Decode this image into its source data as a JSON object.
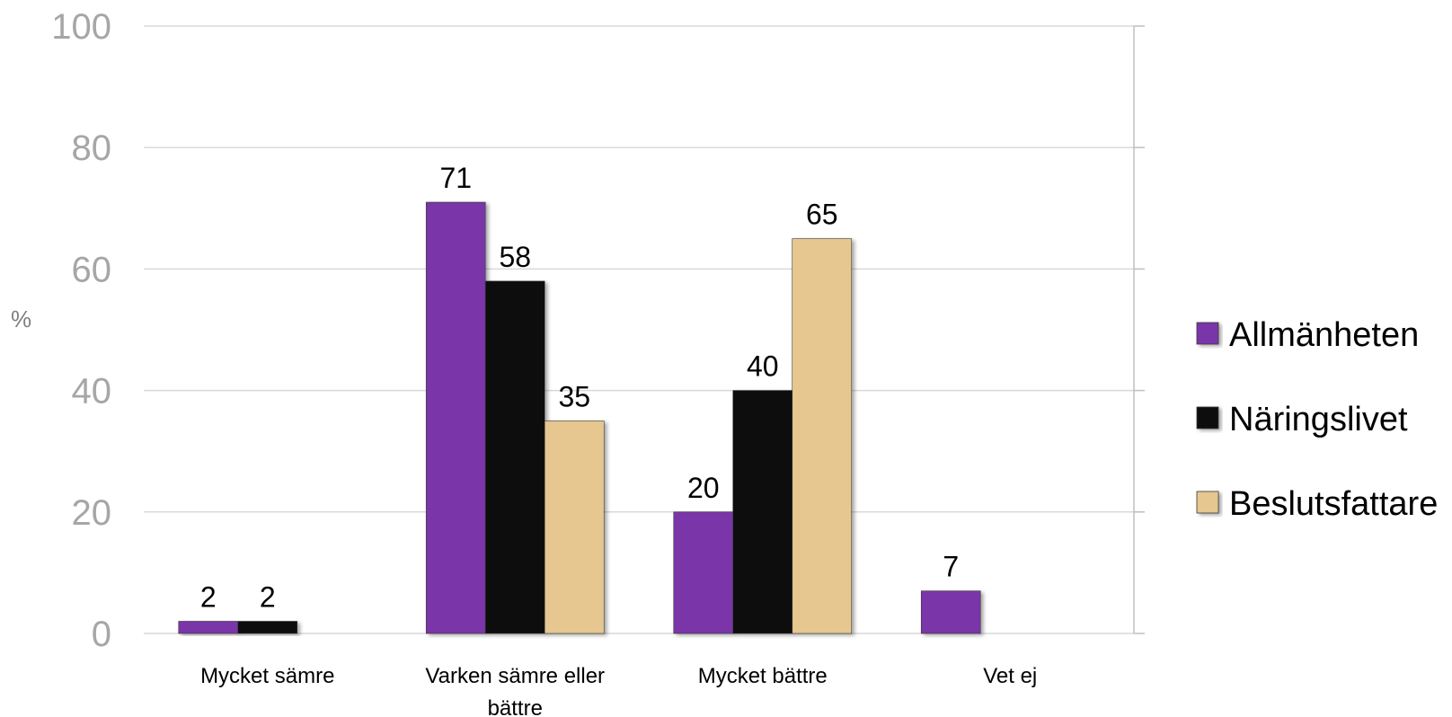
{
  "chart_data": {
    "type": "bar",
    "categories": [
      "Mycket sämre",
      "Varken sämre eller bättre",
      "Mycket bättre",
      "Vet ej"
    ],
    "series": [
      {
        "name": "Allmänheten",
        "values": [
          2,
          71,
          20,
          7
        ],
        "color": "#7a35a8"
      },
      {
        "name": "Näringslivet",
        "values": [
          2,
          58,
          40,
          null
        ],
        "color": "#0a0a0a"
      },
      {
        "name": "Beslutsfattare",
        "values": [
          null,
          35,
          65,
          null
        ],
        "color": "#e6c790"
      }
    ],
    "ylabel": "%",
    "ylim": [
      0,
      100
    ],
    "yticks": [
      0,
      20,
      40,
      60,
      80,
      100
    ],
    "grid": true,
    "legend_position": "right"
  }
}
